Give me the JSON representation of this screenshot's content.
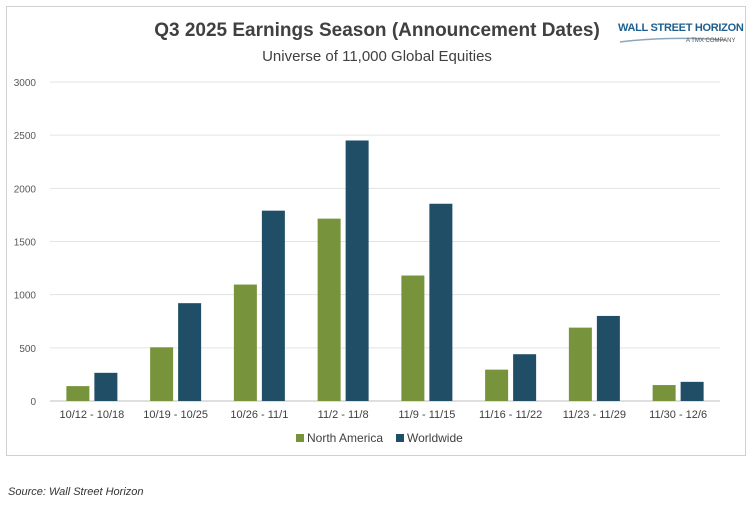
{
  "source_note": "Source: Wall Street Horizon",
  "logo": {
    "text": "WALL STREET HORIZON",
    "subtext": "A TMX COMPANY"
  },
  "chart_data": {
    "type": "bar",
    "title": "Q3 2025 Earnings Season (Announcement Dates)",
    "subtitle": "Universe of 11,000 Global Equities",
    "categories": [
      "10/12 - 10/18",
      "10/19 - 10/25",
      "10/26 - 11/1",
      "11/2 - 11/8",
      "11/9 - 11/15",
      "11/16 - 11/22",
      "11/23 - 11/29",
      "11/30 - 12/6"
    ],
    "series": [
      {
        "name": "North America",
        "color": "#77933c",
        "values": [
          140,
          505,
          1095,
          1715,
          1180,
          295,
          690,
          150
        ]
      },
      {
        "name": "Worldwide",
        "color": "#1f4e66",
        "values": [
          265,
          920,
          1790,
          2450,
          1855,
          440,
          800,
          180
        ]
      }
    ],
    "ylim": [
      0,
      3000
    ],
    "yticks": [
      0,
      500,
      1000,
      1500,
      2000,
      2500,
      3000
    ],
    "grid": true,
    "legend": "bottom"
  }
}
